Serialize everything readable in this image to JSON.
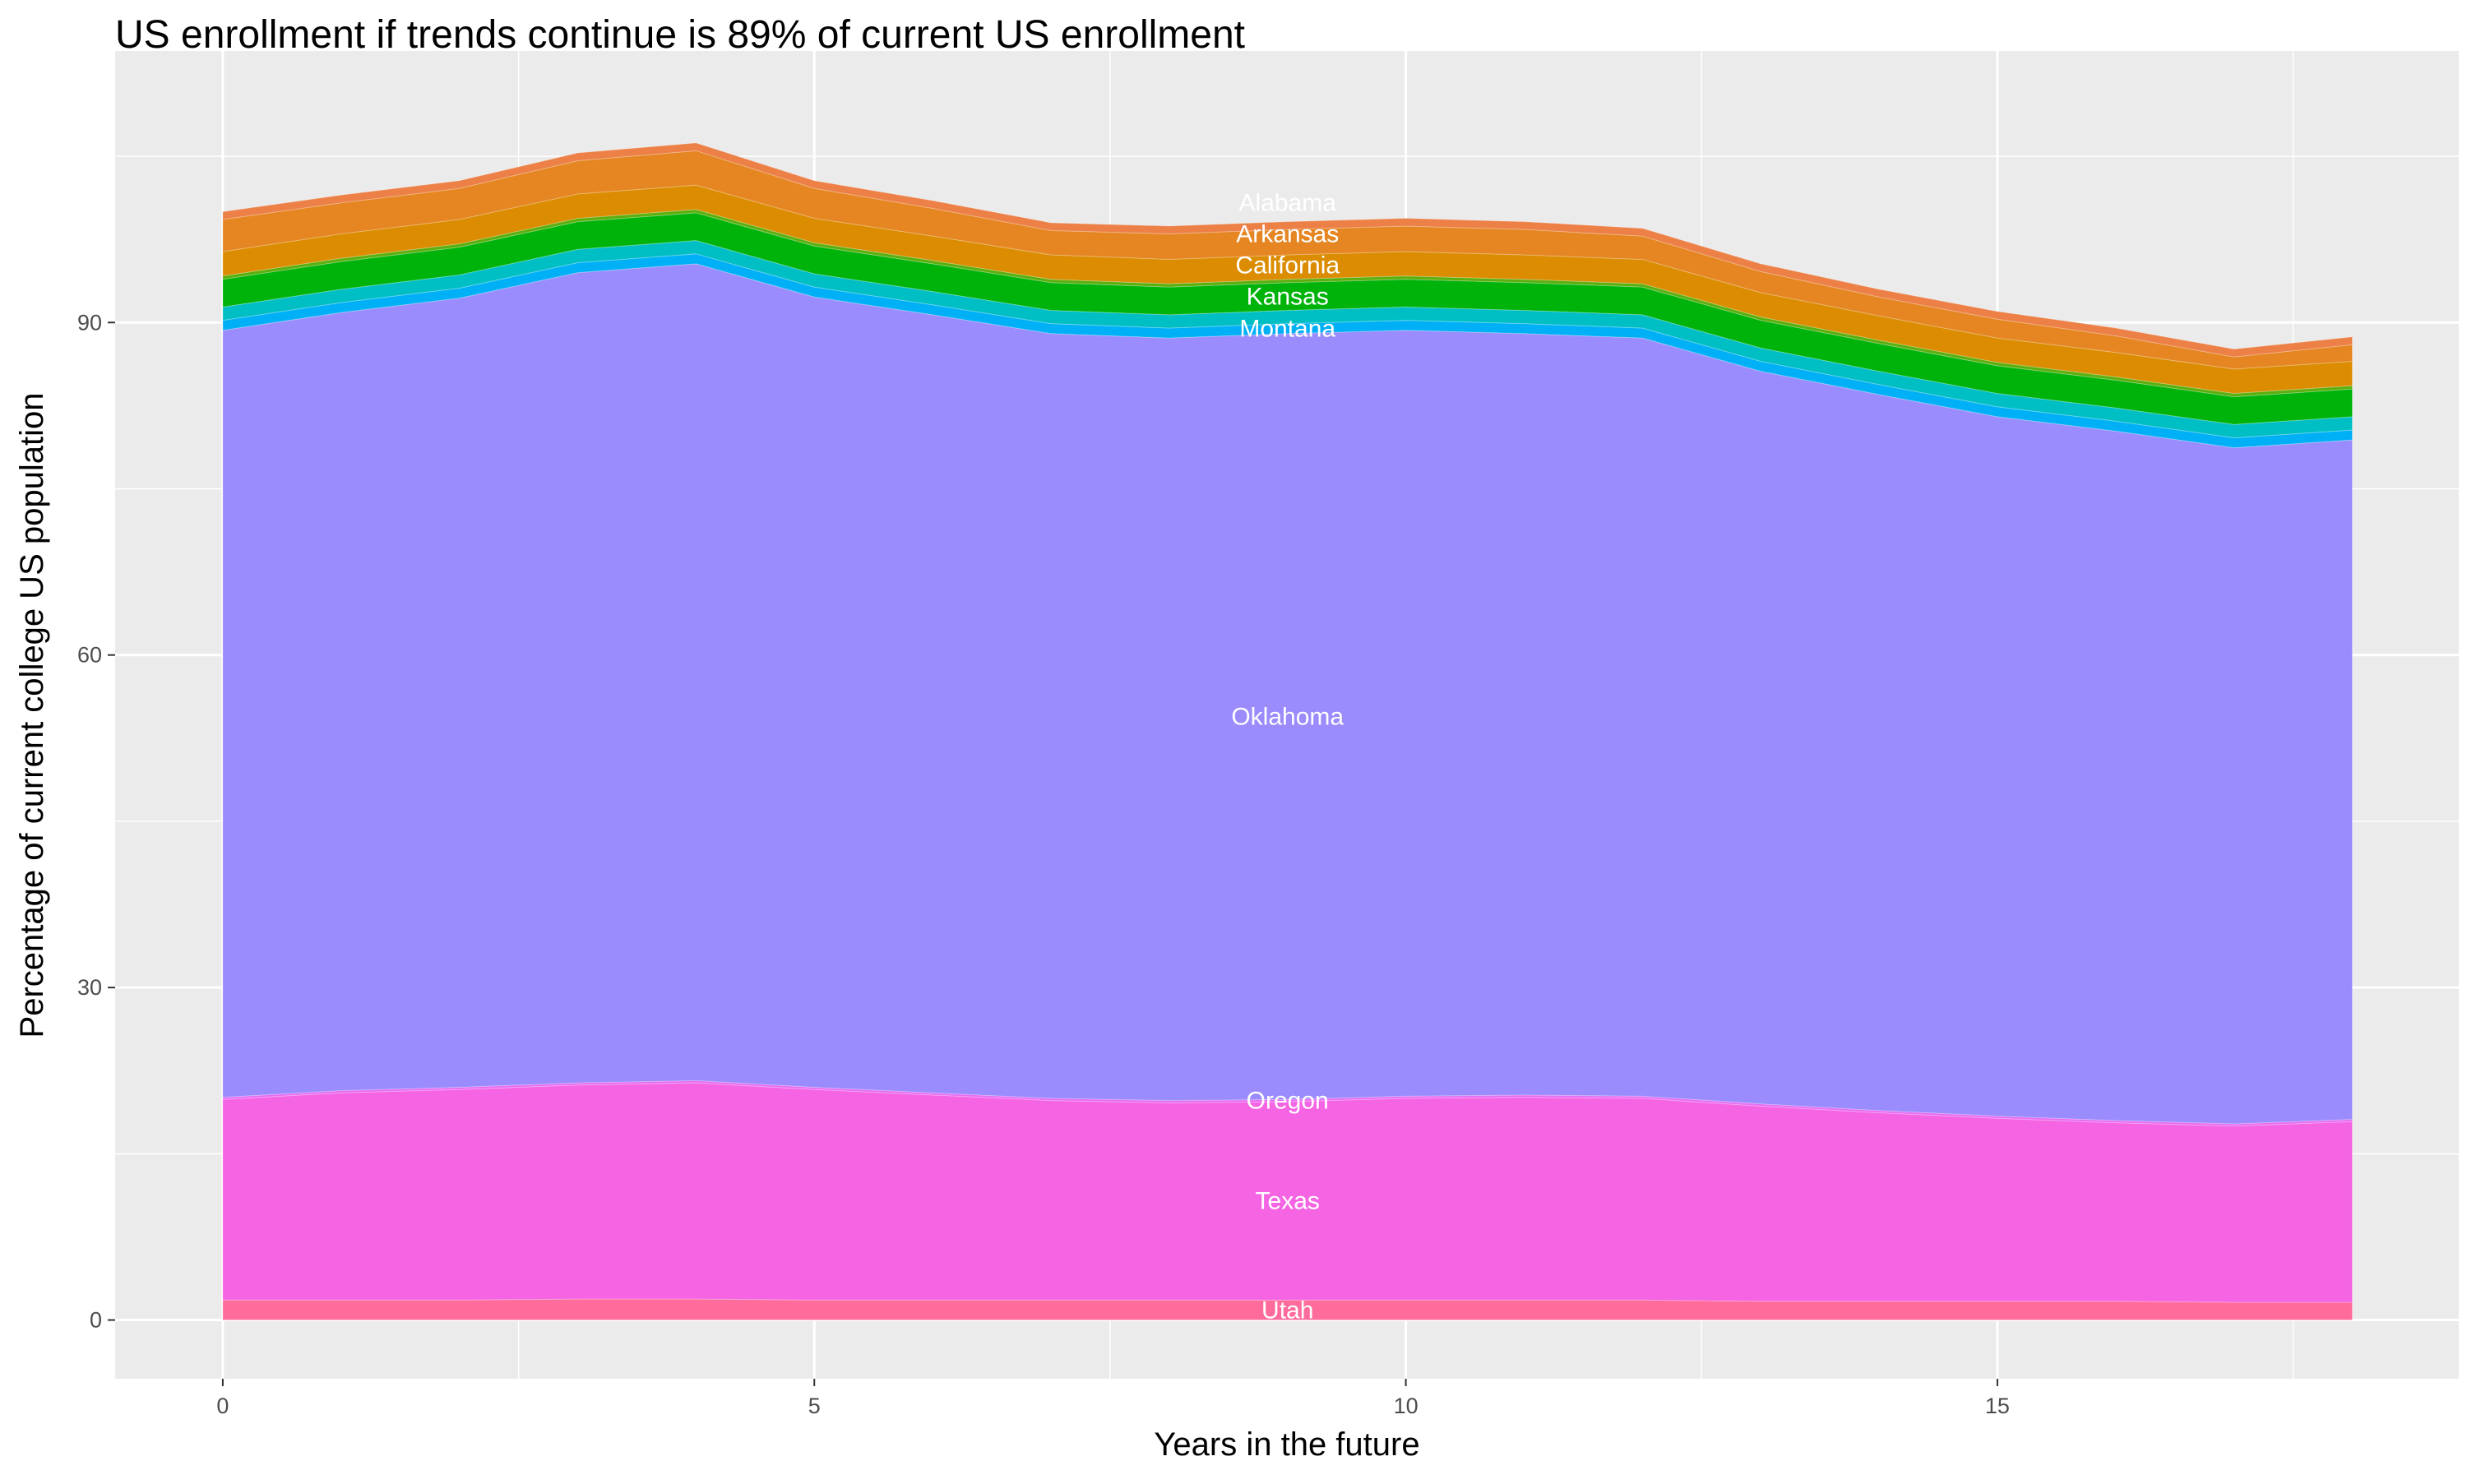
{
  "chart_data": {
    "type": "area",
    "stacked": true,
    "title": "US enrollment if trends continue is 89% of current US enrollment",
    "xlabel": "Years in the future",
    "ylabel": "Percentage of current college US population",
    "xlim": [
      -0.91,
      18.9
    ],
    "ylim": [
      -5.3,
      114.5
    ],
    "xticks": [
      0,
      5,
      10,
      15
    ],
    "yticks": [
      0,
      30,
      60,
      90
    ],
    "grid": true,
    "legend": "none",
    "label_x": 9,
    "x": [
      0,
      1,
      2,
      3,
      4,
      5,
      6,
      7,
      8,
      9,
      10,
      11,
      12,
      13,
      14,
      15,
      16,
      17,
      18
    ],
    "series": [
      {
        "name": "Utah",
        "color": "#FF6C9C",
        "values": [
          1.8,
          1.8,
          1.8,
          1.9,
          1.9,
          1.8,
          1.8,
          1.8,
          1.8,
          1.8,
          1.8,
          1.8,
          1.8,
          1.7,
          1.7,
          1.7,
          1.7,
          1.6,
          1.6
        ]
      },
      {
        "name": "Texas",
        "color": "#F564E3",
        "values": [
          18.1,
          18.7,
          19.0,
          19.3,
          19.5,
          19.0,
          18.5,
          18.0,
          17.8,
          17.9,
          18.2,
          18.3,
          18.2,
          17.6,
          17.0,
          16.5,
          16.1,
          15.9,
          16.3
        ]
      },
      {
        "name": "Oregon",
        "color": "#E76BF3",
        "values": [
          0.2,
          0.2,
          0.2,
          0.2,
          0.2,
          0.2,
          0.2,
          0.2,
          0.2,
          0.2,
          0.2,
          0.2,
          0.2,
          0.2,
          0.2,
          0.2,
          0.2,
          0.2,
          0.2
        ]
      },
      {
        "name": "Oklahoma",
        "color": "#9A8CFC",
        "values": [
          69.2,
          70.2,
          71.2,
          73.1,
          73.7,
          71.3,
          70.2,
          69.0,
          68.8,
          69.1,
          69.1,
          68.7,
          68.4,
          66.1,
          64.6,
          63.1,
          62.2,
          61.0,
          61.3
        ]
      },
      {
        "name": "Montana",
        "color": "#00B0F6",
        "values": [
          0.9,
          0.9,
          0.9,
          0.9,
          0.9,
          0.9,
          0.9,
          0.9,
          0.9,
          0.9,
          0.9,
          0.9,
          0.9,
          0.9,
          0.9,
          0.9,
          0.9,
          0.9,
          0.9
        ]
      },
      {
        "color": "#00BFC4",
        "values": [
          1.2,
          1.2,
          1.2,
          1.2,
          1.2,
          1.2,
          1.2,
          1.2,
          1.2,
          1.2,
          1.2,
          1.2,
          1.2,
          1.2,
          1.2,
          1.2,
          1.2,
          1.2,
          1.2
        ]
      },
      {
        "name": "Kansas",
        "color": "#00B30B",
        "values": [
          2.5,
          2.5,
          2.5,
          2.5,
          2.5,
          2.5,
          2.5,
          2.5,
          2.5,
          2.5,
          2.5,
          2.5,
          2.5,
          2.5,
          2.5,
          2.5,
          2.5,
          2.5,
          2.5
        ]
      },
      {
        "color": "#5BAF0E",
        "values": [
          0.3,
          0.3,
          0.3,
          0.3,
          0.3,
          0.3,
          0.3,
          0.3,
          0.3,
          0.3,
          0.3,
          0.3,
          0.3,
          0.3,
          0.3,
          0.3,
          0.3,
          0.3,
          0.3
        ]
      },
      {
        "name": "California",
        "color": "#DB8C00",
        "values": [
          2.2,
          2.2,
          2.2,
          2.2,
          2.2,
          2.2,
          2.2,
          2.2,
          2.2,
          2.2,
          2.2,
          2.2,
          2.2,
          2.2,
          2.2,
          2.2,
          2.2,
          2.2,
          2.2
        ]
      },
      {
        "name": "Arkansas",
        "color": "#E58622",
        "values": [
          2.9,
          2.8,
          2.8,
          3.0,
          3.1,
          2.7,
          2.5,
          2.2,
          2.3,
          2.3,
          2.3,
          2.3,
          2.1,
          1.9,
          1.7,
          1.7,
          1.5,
          1.1,
          1.5
        ]
      },
      {
        "name": "Alabama",
        "color": "#EC8046",
        "values": [
          0.7,
          0.7,
          0.7,
          0.7,
          0.7,
          0.7,
          0.7,
          0.7,
          0.7,
          0.7,
          0.7,
          0.7,
          0.7,
          0.7,
          0.7,
          0.7,
          0.7,
          0.7,
          0.7
        ]
      }
    ]
  }
}
